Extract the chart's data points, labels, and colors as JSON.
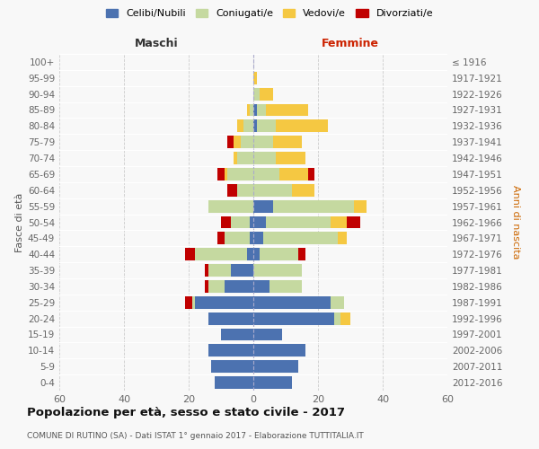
{
  "age_groups": [
    "0-4",
    "5-9",
    "10-14",
    "15-19",
    "20-24",
    "25-29",
    "30-34",
    "35-39",
    "40-44",
    "45-49",
    "50-54",
    "55-59",
    "60-64",
    "65-69",
    "70-74",
    "75-79",
    "80-84",
    "85-89",
    "90-94",
    "95-99",
    "100+"
  ],
  "birth_years": [
    "2012-2016",
    "2007-2011",
    "2002-2006",
    "1997-2001",
    "1992-1996",
    "1987-1991",
    "1982-1986",
    "1977-1981",
    "1972-1976",
    "1967-1971",
    "1962-1966",
    "1957-1961",
    "1952-1956",
    "1947-1951",
    "1942-1946",
    "1937-1941",
    "1932-1936",
    "1927-1931",
    "1922-1926",
    "1917-1921",
    "≤ 1916"
  ],
  "male": {
    "celibi": [
      12,
      13,
      14,
      10,
      14,
      18,
      9,
      7,
      2,
      1,
      1,
      0,
      0,
      0,
      0,
      0,
      0,
      0,
      0,
      0,
      0
    ],
    "coniugati": [
      0,
      0,
      0,
      0,
      0,
      1,
      5,
      7,
      16,
      8,
      6,
      14,
      5,
      8,
      5,
      4,
      3,
      1,
      0,
      0,
      0
    ],
    "vedovi": [
      0,
      0,
      0,
      0,
      0,
      0,
      0,
      0,
      0,
      0,
      0,
      0,
      0,
      1,
      1,
      2,
      2,
      1,
      0,
      0,
      0
    ],
    "divorziati": [
      0,
      0,
      0,
      0,
      0,
      2,
      1,
      1,
      3,
      2,
      3,
      0,
      3,
      2,
      0,
      2,
      0,
      0,
      0,
      0,
      0
    ]
  },
  "female": {
    "nubili": [
      12,
      14,
      16,
      9,
      25,
      24,
      5,
      0,
      2,
      3,
      4,
      6,
      0,
      0,
      0,
      0,
      1,
      1,
      0,
      0,
      0
    ],
    "coniugate": [
      0,
      0,
      0,
      0,
      2,
      4,
      10,
      15,
      12,
      23,
      20,
      25,
      12,
      8,
      7,
      6,
      6,
      3,
      2,
      0,
      0
    ],
    "vedove": [
      0,
      0,
      0,
      0,
      3,
      0,
      0,
      0,
      0,
      3,
      5,
      4,
      7,
      9,
      9,
      9,
      16,
      13,
      4,
      1,
      0
    ],
    "divorziate": [
      0,
      0,
      0,
      0,
      0,
      0,
      0,
      0,
      2,
      0,
      4,
      0,
      0,
      2,
      0,
      0,
      0,
      0,
      0,
      0,
      0
    ]
  },
  "colors": {
    "celibi": "#4c72b0",
    "coniugati": "#c5d9a0",
    "vedovi": "#f5c842",
    "divorziati": "#c00000"
  },
  "title": "Popolazione per età, sesso e stato civile - 2017",
  "subtitle": "COMUNE DI RUTINO (SA) - Dati ISTAT 1° gennaio 2017 - Elaborazione TUTTITALIA.IT",
  "xlabel_left": "Maschi",
  "xlabel_right": "Femmine",
  "ylabel_left": "Fasce di età",
  "ylabel_right": "Anni di nascita",
  "xlim": 60,
  "bg_color": "#f8f8f8",
  "grid_color": "#cccccc",
  "legend_labels": [
    "Celibi/Nubili",
    "Coniugati/e",
    "Vedovi/e",
    "Divorziati/e"
  ]
}
